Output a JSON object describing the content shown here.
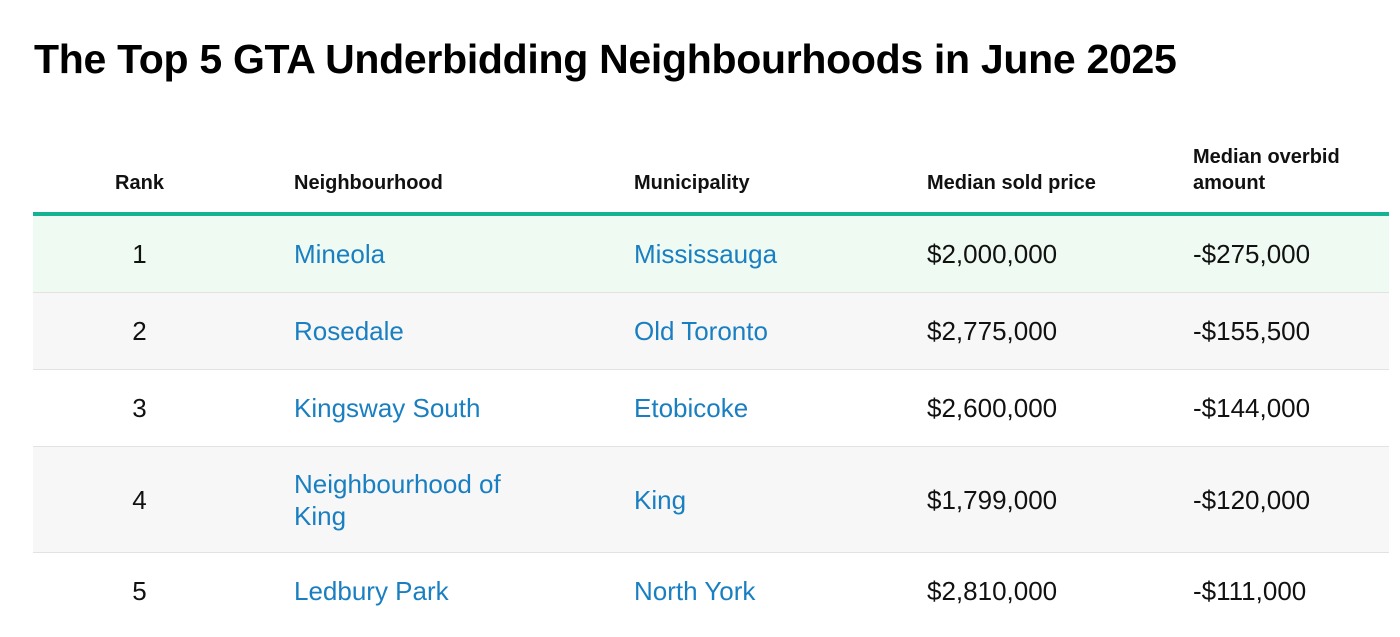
{
  "title": "The Top 5 GTA Underbidding Neighbourhoods in June 2025",
  "table": {
    "headers": {
      "rank": "Rank",
      "neighbourhood": "Neighbourhood",
      "municipality": "Municipality",
      "median_sold_price": "Median sold price",
      "median_overbid_amount": "Median overbid amount"
    },
    "rows": [
      {
        "rank": "1",
        "neighbourhood": "Mineola",
        "municipality": "Mississauga",
        "median_sold_price": "$2,000,000",
        "median_overbid_amount": "-$275,000"
      },
      {
        "rank": "2",
        "neighbourhood": "Rosedale",
        "municipality": "Old Toronto",
        "median_sold_price": "$2,775,000",
        "median_overbid_amount": "-$155,500"
      },
      {
        "rank": "3",
        "neighbourhood": "Kingsway South",
        "municipality": "Etobicoke",
        "median_sold_price": "$2,600,000",
        "median_overbid_amount": "-$144,000"
      },
      {
        "rank": "4",
        "neighbourhood": "Neighbourhood of King",
        "municipality": "King",
        "median_sold_price": "$1,799,000",
        "median_overbid_amount": "-$120,000"
      },
      {
        "rank": "5",
        "neighbourhood": "Ledbury Park",
        "municipality": "North York",
        "median_sold_price": "$2,810,000",
        "median_overbid_amount": "-$111,000"
      }
    ]
  },
  "colors": {
    "accent_rule": "#16b294",
    "link": "#1a7fc1",
    "highlight_row": "#effaf2",
    "alt_row": "#f7f7f7"
  }
}
